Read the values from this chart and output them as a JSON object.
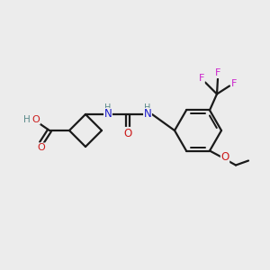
{
  "bg_color": "#ececec",
  "bond_color": "#1a1a1a",
  "atom_colors": {
    "C": "#1a1a1a",
    "H": "#5a8a8a",
    "N": "#1a1acc",
    "O": "#cc1a1a",
    "F": "#cc22cc"
  },
  "figsize": [
    3.0,
    3.0
  ],
  "dpi": 100,
  "bond_lw": 1.6,
  "font_size": 7.5
}
